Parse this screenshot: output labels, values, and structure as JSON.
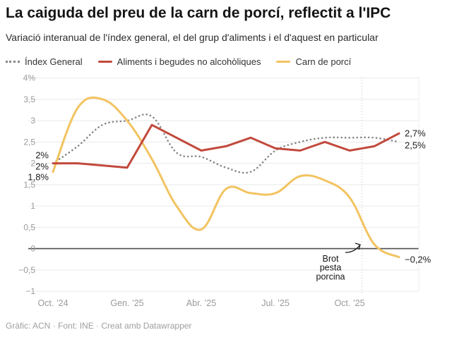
{
  "header": {
    "title": "La caiguda del preu de la carn de porcí, reflectit a l'IPC",
    "subtitle": "Variació interanual de l'índex general, el del grup d'aliments i el d'aquest en particular"
  },
  "chart_data": {
    "type": "line",
    "x_unit": "month",
    "x_range_visible": [
      "Oct. ’24",
      "Oct. ’25"
    ],
    "x_ticks": [
      {
        "index": 0,
        "label": "Oct. ’24"
      },
      {
        "index": 3,
        "label": "Gen. ’25"
      },
      {
        "index": 6,
        "label": "Abr. ’25"
      },
      {
        "index": 9,
        "label": "Jul. ’25"
      },
      {
        "index": 12,
        "label": "Oct. ’25"
      }
    ],
    "y_ticks": [
      {
        "v": 4,
        "label": "4%"
      },
      {
        "v": 3.5,
        "label": "3,5"
      },
      {
        "v": 3,
        "label": "3"
      },
      {
        "v": 2.5,
        "label": "2,5"
      },
      {
        "v": 2,
        "label": "2"
      },
      {
        "v": 1.5,
        "label": "1,5"
      },
      {
        "v": 1,
        "label": "1"
      },
      {
        "v": 0.5,
        "label": "0,5"
      },
      {
        "v": 0,
        "label": "0"
      },
      {
        "v": -0.5,
        "label": "−0,5"
      },
      {
        "v": -1,
        "label": "−1"
      }
    ],
    "ylim": [
      -1,
      4
    ],
    "grid": true,
    "legend_position": "top",
    "series": [
      {
        "name": "Índex General",
        "color": "#878787",
        "line_style": "dotted",
        "interpolation": "curved",
        "values": [
          2.0,
          2.4,
          2.9,
          3.0,
          3.1,
          2.25,
          2.15,
          1.9,
          1.8,
          2.3,
          2.5,
          2.6,
          2.6,
          2.6,
          2.5
        ],
        "start_label": "2%",
        "end_label": "2,5%",
        "start_dy": -11,
        "end_dy": 5
      },
      {
        "name": "Aliments i begudes no alcohòliques",
        "color": "#c2493c",
        "line_style": "solid",
        "interpolation": "linear",
        "values": [
          2.0,
          2.0,
          1.95,
          1.9,
          2.9,
          2.6,
          2.3,
          2.4,
          2.6,
          2.35,
          2.3,
          2.5,
          2.3,
          2.4,
          2.7
        ],
        "start_label": "2%",
        "end_label": "2,7%",
        "start_dy": 5,
        "end_dy": 0
      },
      {
        "name": "Carn de porcí",
        "color": "#f2c360",
        "line_style": "solid",
        "interpolation": "curved",
        "values": [
          1.8,
          3.3,
          3.5,
          3.0,
          2.1,
          1.0,
          0.45,
          1.4,
          1.3,
          1.3,
          1.7,
          1.6,
          1.2,
          0.1,
          -0.2
        ],
        "start_label": "1,8%",
        "end_label": "−0,2%",
        "start_dy": 8,
        "end_dy": 4
      }
    ],
    "annotation": {
      "text_lines": [
        "Brot",
        "pesta",
        "porcina"
      ],
      "marker_x_index": 12.5
    }
  },
  "footer": {
    "text": "Gràfic: ACN · Font: INE · Creat amb Datawrapper"
  }
}
